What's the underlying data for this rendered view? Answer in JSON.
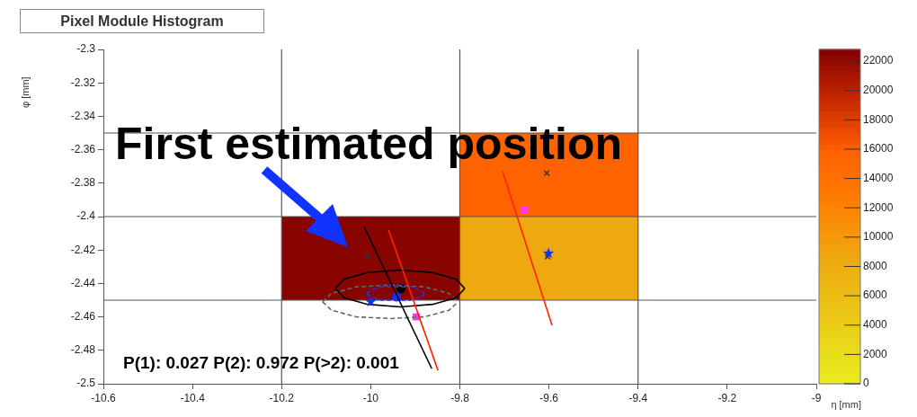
{
  "chart_data": {
    "type": "scatter",
    "title": "Pixel Module Histogram",
    "xlabel": "η [mm]",
    "ylabel": "φ [mm]",
    "annotations": [
      "First estimated position",
      "P(1): 0.027 P(2): 0.972 P(>2): 0.001"
    ],
    "ref_lines": [
      {
        "axis": "x",
        "value": -10.2,
        "color": "#555555"
      },
      {
        "axis": "x",
        "value": -9.8,
        "color": "#555555"
      },
      {
        "axis": "x",
        "value": -9.4,
        "color": "#555555"
      },
      {
        "axis": "y",
        "value": -2.35,
        "color": "#555555"
      },
      {
        "axis": "y",
        "value": -2.4,
        "color": "#555555"
      },
      {
        "axis": "y",
        "value": -2.45,
        "color": "#555555"
      }
    ],
    "clim": [
      0,
      22800
    ],
    "cticks": [
      0,
      2000,
      4000,
      6000,
      8000,
      10000,
      12000,
      14000,
      16000,
      18000,
      20000,
      22000
    ],
    "xlim": [
      -10.6,
      -9
    ],
    "xticks": [
      -10.6,
      -10.4,
      -10.2,
      -10,
      -9.8,
      -9.6,
      -9.4,
      -9.2,
      -9
    ],
    "ylim": [
      -2.5,
      -2.3
    ],
    "yticks": [
      -2.5,
      -2.48,
      -2.46,
      -2.44,
      -2.42,
      -2.4,
      -2.38,
      -2.36,
      -2.34,
      -2.32,
      -2.3
    ],
    "series": [
      {
        "type": "bar",
        "x": [
          -10
        ],
        "base": [
          -2.45
        ],
        "values": [
          0.05
        ],
        "cvalues": [
          22500
        ]
      },
      {
        "type": "bar",
        "x": [
          -9.6
        ],
        "base": [
          -2.45
        ],
        "values": [
          0.05
        ],
        "cvalues": [
          8500
        ]
      },
      {
        "type": "bar",
        "x": [
          -9.6
        ],
        "base": [
          -2.4
        ],
        "values": [
          0.05
        ],
        "cvalues": [
          15500
        ]
      },
      {
        "type": "line",
        "color": "#000000",
        "line_style": "solid",
        "x": [
          -10.015,
          -9.863
        ],
        "values": [
          -2.406,
          -2.491
        ]
      },
      {
        "type": "line",
        "color": "#ff2200",
        "line_style": "solid",
        "x": [
          -9.96,
          -9.849
        ],
        "values": [
          -2.408,
          -2.492
        ]
      },
      {
        "type": "line",
        "color": "#ff2200",
        "line_style": "solid",
        "x": [
          -9.704,
          -9.593
        ],
        "values": [
          -2.373,
          -2.465
        ]
      },
      {
        "type": "line",
        "color": "#000000",
        "line_style": "solid",
        "x": [
          -10.079,
          -10.06,
          -10.007,
          -9.934,
          -9.861,
          -9.808,
          -9.789
        ],
        "values": [
          -2.443,
          -2.4375,
          -2.4335,
          -2.432,
          -2.4335,
          -2.4375,
          -2.443
        ]
      },
      {
        "type": "line",
        "color": "#000000",
        "line_style": "solid",
        "x": [
          -10.079,
          -10.06,
          -10.007,
          -9.934,
          -9.861,
          -9.808,
          -9.789
        ],
        "values": [
          -2.443,
          -2.4485,
          -2.4525,
          -2.454,
          -2.4525,
          -2.4485,
          -2.443
        ]
      },
      {
        "type": "line",
        "color": "#666666",
        "line_style": "dashed",
        "x": [
          -10.108,
          -10.088,
          -10.032,
          -9.956,
          -9.88,
          -9.824,
          -9.804
        ],
        "values": [
          -2.451,
          -2.446,
          -2.442,
          -2.441,
          -2.442,
          -2.446,
          -2.451
        ]
      },
      {
        "type": "line",
        "color": "#666666",
        "line_style": "dashed",
        "x": [
          -10.108,
          -10.088,
          -10.032,
          -9.956,
          -9.88,
          -9.824,
          -9.804
        ],
        "values": [
          -2.451,
          -2.456,
          -2.46,
          -2.461,
          -2.46,
          -2.456,
          -2.451
        ]
      },
      {
        "type": "line",
        "color": "#2233ee",
        "line_style": "dashed",
        "x": [
          -10.009,
          -10.0,
          -9.976,
          -9.944,
          -9.912,
          -9.888,
          -9.879
        ],
        "values": [
          -2.446,
          -2.444,
          -2.442,
          -2.442,
          -2.442,
          -2.444,
          -2.446
        ]
      },
      {
        "type": "line",
        "color": "#2233ee",
        "line_style": "dashed",
        "x": [
          -10.009,
          -10.0,
          -9.976,
          -9.944,
          -9.912,
          -9.888,
          -9.879
        ],
        "values": [
          -2.446,
          -2.448,
          -2.45,
          -2.45,
          -2.45,
          -2.448,
          -2.446
        ]
      },
      {
        "type": "scatter",
        "color": "#333333",
        "marker": "cross",
        "x": [
          -10.007,
          -9.605,
          -9.603
        ],
        "values": [
          -2.424,
          -2.374,
          -2.424
        ]
      },
      {
        "type": "scatter",
        "color": "#ff33ff",
        "marker": "square",
        "x": [
          -9.898,
          -9.656
        ],
        "values": [
          -2.46,
          -2.396
        ]
      },
      {
        "type": "scatter",
        "color": "#1133ee",
        "marker": "star",
        "x": [
          -10.0,
          -9.601
        ],
        "values": [
          -2.451,
          -2.422
        ]
      },
      {
        "type": "scatter",
        "color": "#1133ee",
        "marker": "circle",
        "x": [
          -9.942
        ],
        "values": [
          -2.448
        ]
      },
      {
        "type": "scatter",
        "color": "#000000",
        "marker": "circle",
        "x": [
          -9.932
        ],
        "values": [
          -2.443
        ]
      }
    ]
  }
}
